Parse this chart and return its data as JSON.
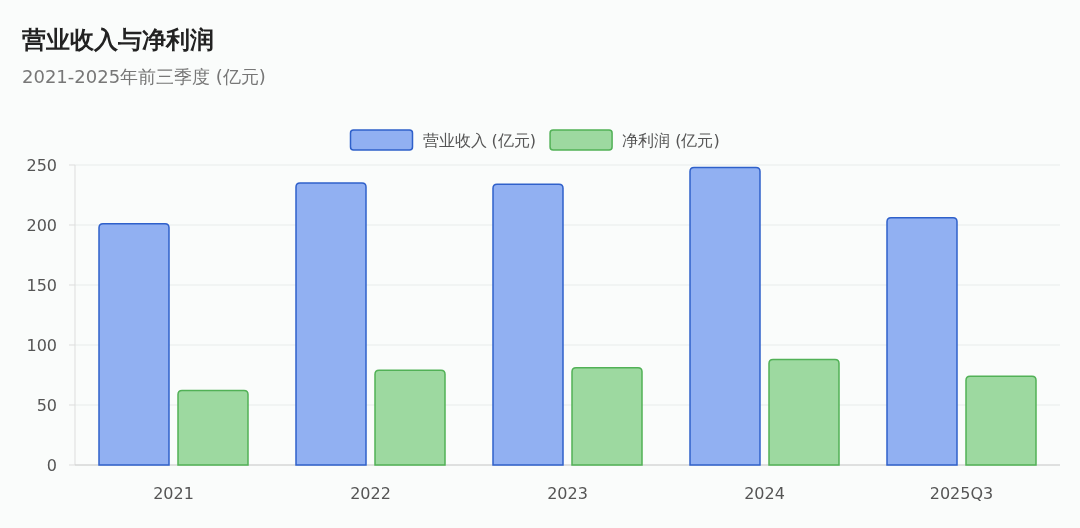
{
  "chart_data": {
    "type": "bar",
    "title": "营业收入与净利润",
    "subtitle": "2021-2025年前三季度 (亿元)",
    "categories": [
      "2021",
      "2022",
      "2023",
      "2024",
      "2025Q3"
    ],
    "series": [
      {
        "name": "营业收入 (亿元)",
        "color": "#91b0f2",
        "values": [
          201,
          235,
          234,
          248,
          206
        ]
      },
      {
        "name": "净利润 (亿元)",
        "color": "#9dd9a0",
        "values": [
          62,
          79,
          81,
          88,
          74
        ]
      }
    ],
    "ylim": [
      0,
      250
    ],
    "yticks": [
      0,
      50,
      100,
      150,
      200,
      250
    ],
    "grid": "y",
    "legend": "top"
  }
}
